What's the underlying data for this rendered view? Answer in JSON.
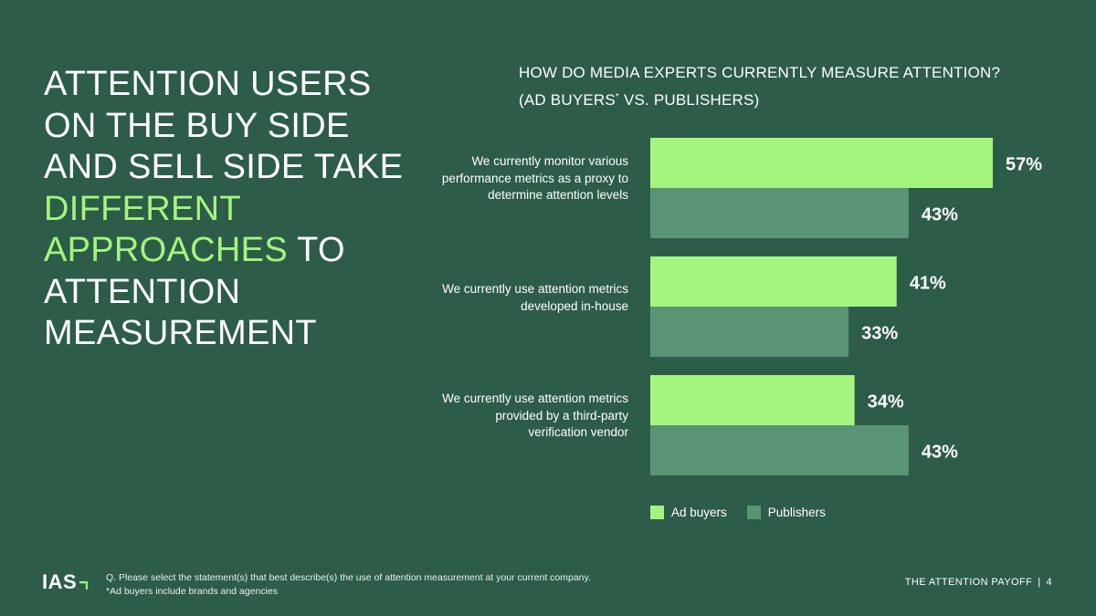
{
  "headline": {
    "line1": "ATTENTION USERS ON THE BUY SIDE AND SELL SIDE TAKE",
    "accent": "DIFFERENT APPROACHES",
    "line2": "TO ATTENTION MEASUREMENT"
  },
  "chart_data": {
    "type": "bar",
    "orientation": "horizontal",
    "title": "HOW DO MEDIA EXPERTS CURRENTLY MEASURE ATTENTION?",
    "subtitle_prefix": "(AD BUYERS",
    "subtitle_mark": "*",
    "subtitle_suffix": " VS. PUBLISHERS)",
    "categories": [
      "We currently monitor various performance metrics as a proxy to determine attention levels",
      "We currently use attention metrics developed in-house",
      "We currently use attention metrics provided by a third-party verification vendor"
    ],
    "series": [
      {
        "name": "Ad buyers",
        "values": [
          57,
          41,
          34
        ],
        "labels": [
          "57%",
          "41%",
          "34%"
        ],
        "color": "#a3f57d"
      },
      {
        "name": "Publishers",
        "values": [
          43,
          33,
          43
        ],
        "labels": [
          "43%",
          "33%",
          "43%"
        ],
        "color": "#5a9477"
      }
    ],
    "xlim": [
      0,
      57
    ],
    "legend": "bottom",
    "grid": false
  },
  "footer": {
    "logo": "IAS",
    "question": "Q. Please select the statement(s) that best describe(s) the use of attention measurement at your current company.",
    "note": "*Ad buyers include brands and agencies",
    "report_name": "THE ATTENTION PAYOFF",
    "separator": "|",
    "page_number": "4"
  },
  "colors": {
    "background": "#2d5c49",
    "accent": "#a3f57d",
    "publishers": "#5a9477"
  }
}
